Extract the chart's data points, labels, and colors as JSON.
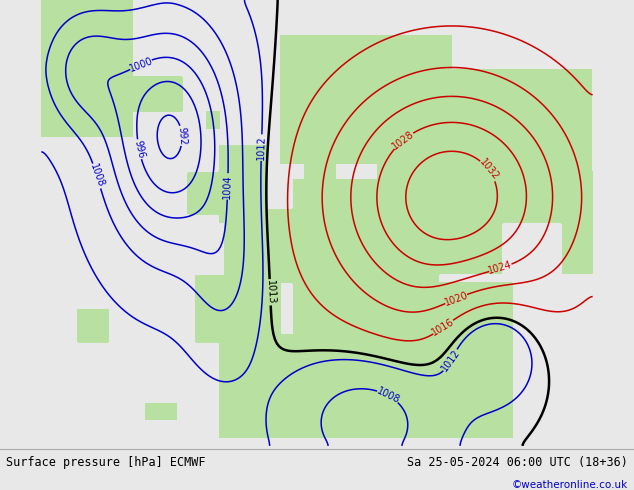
{
  "title_left": "Surface pressure [hPa] ECMWF",
  "title_right": "Sa 25-05-2024 06:00 UTC (18+36)",
  "credit": "©weatheronline.co.uk",
  "land_color": "#b8e0a0",
  "sea_color": "#d0d0d0",
  "isobar_low_color": "#0000cc",
  "isobar_high_color": "#cc0000",
  "isobar_mid_color": "#000000",
  "label_fontsize": 7,
  "footer_fontsize": 8.5,
  "footer_bg": "#e8e8e8",
  "fig_bg": "#e8e8e8"
}
